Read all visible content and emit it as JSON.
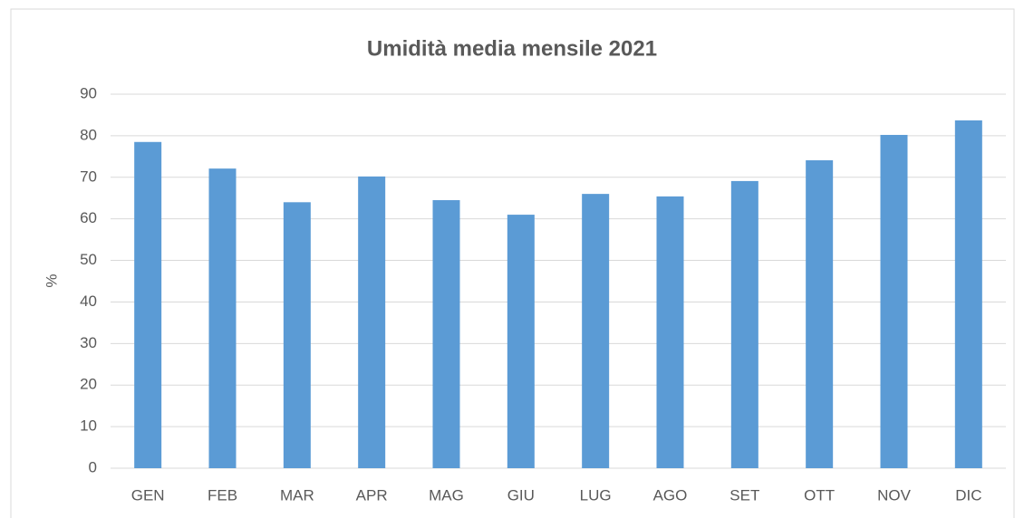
{
  "chart_data": {
    "type": "bar",
    "title": "Umidità media mensile 2021",
    "y_label": "%",
    "categories": [
      "GEN",
      "FEB",
      "MAR",
      "APR",
      "MAG",
      "GIU",
      "LUG",
      "AGO",
      "SET",
      "OTT",
      "NOV",
      "DIC"
    ],
    "values": [
      78.5,
      72.1,
      64,
      70.2,
      64.5,
      61,
      66,
      65.4,
      69.1,
      74.1,
      80.2,
      83.7
    ],
    "color": "#5b9bd5",
    "ylim": [
      0,
      90
    ],
    "yticks": [
      0,
      10,
      20,
      30,
      40,
      50,
      60,
      70,
      80,
      90
    ],
    "grid": true
  }
}
